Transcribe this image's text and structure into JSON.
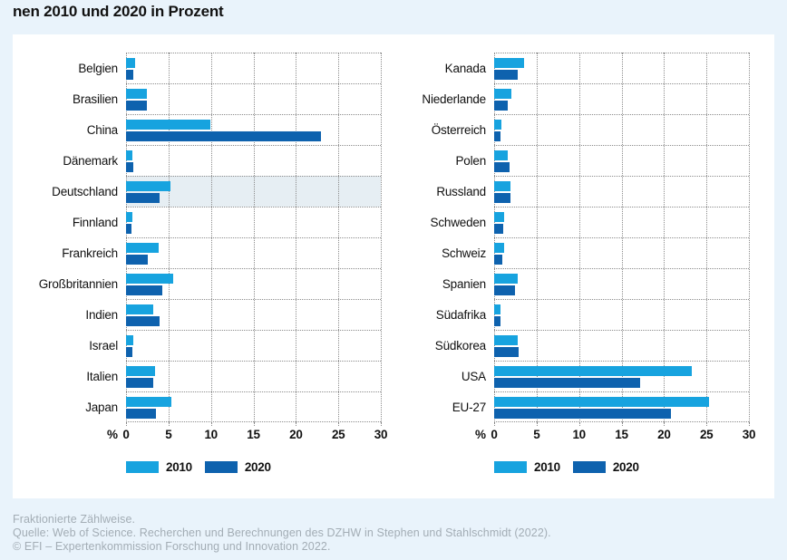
{
  "title": "nen 2010 und 2020 in Prozent",
  "axis": {
    "unit_label": "%"
  },
  "legend": {
    "items": [
      "2010",
      "2020"
    ]
  },
  "colors": {
    "series_2010": "#17A3DF",
    "series_2020": "#0E62AE",
    "highlight_row": "#E6EEF3",
    "page_background": "#E9F3FB",
    "panel_background": "#FFFFFF",
    "gridline": "#8C8C8C",
    "footer_text": "#A3ADB5",
    "title_text": "#111111"
  },
  "footer": {
    "lines": [
      "Fraktionierte Zählweise.",
      "Quelle: Web of Science. Recherchen und Berechnungen des DZHW in Stephen und Stahlschmidt (2022).",
      "© EFI – Expertenkommission Forschung und Innovation 2022."
    ]
  },
  "chart_data": [
    {
      "type": "bar",
      "orientation": "horizontal",
      "categories": [
        "Belgien",
        "Brasilien",
        "China",
        "Dänemark",
        "Deutschland",
        "Finnland",
        "Frankreich",
        "Großbritannien",
        "Indien",
        "Israel",
        "Italien",
        "Japan"
      ],
      "series": [
        {
          "name": "2010",
          "color": "#17A3DF",
          "values": [
            1.1,
            2.5,
            9.9,
            0.8,
            5.2,
            0.8,
            3.8,
            5.5,
            3.2,
            0.9,
            3.4,
            5.3
          ]
        },
        {
          "name": "2020",
          "color": "#0E62AE",
          "values": [
            0.9,
            2.5,
            23.0,
            0.9,
            4.0,
            0.6,
            2.6,
            4.3,
            4.0,
            0.8,
            3.2,
            3.5
          ]
        }
      ],
      "xlabel": "%",
      "xlim": [
        0,
        30
      ],
      "xticks": [
        0,
        5,
        10,
        15,
        20,
        25,
        30
      ],
      "grid": true,
      "legend_position": "bottom",
      "highlighted_category": "Deutschland"
    },
    {
      "type": "bar",
      "orientation": "horizontal",
      "categories": [
        "Kanada",
        "Niederlande",
        "Österreich",
        "Polen",
        "Russland",
        "Schweden",
        "Schweiz",
        "Spanien",
        "Südafrika",
        "Südkorea",
        "USA",
        "EU-27"
      ],
      "series": [
        {
          "name": "2010",
          "color": "#17A3DF",
          "values": [
            3.5,
            2.0,
            0.9,
            1.6,
            1.9,
            1.2,
            1.2,
            2.8,
            0.7,
            2.8,
            23.3,
            25.3
          ]
        },
        {
          "name": "2020",
          "color": "#0E62AE",
          "values": [
            2.8,
            1.6,
            0.8,
            1.8,
            1.9,
            1.1,
            1.0,
            2.5,
            0.7,
            2.9,
            17.2,
            20.8
          ]
        }
      ],
      "xlabel": "%",
      "xlim": [
        0,
        30
      ],
      "xticks": [
        0,
        5,
        10,
        15,
        20,
        25,
        30
      ],
      "grid": true,
      "legend_position": "bottom",
      "highlighted_category": null
    }
  ]
}
